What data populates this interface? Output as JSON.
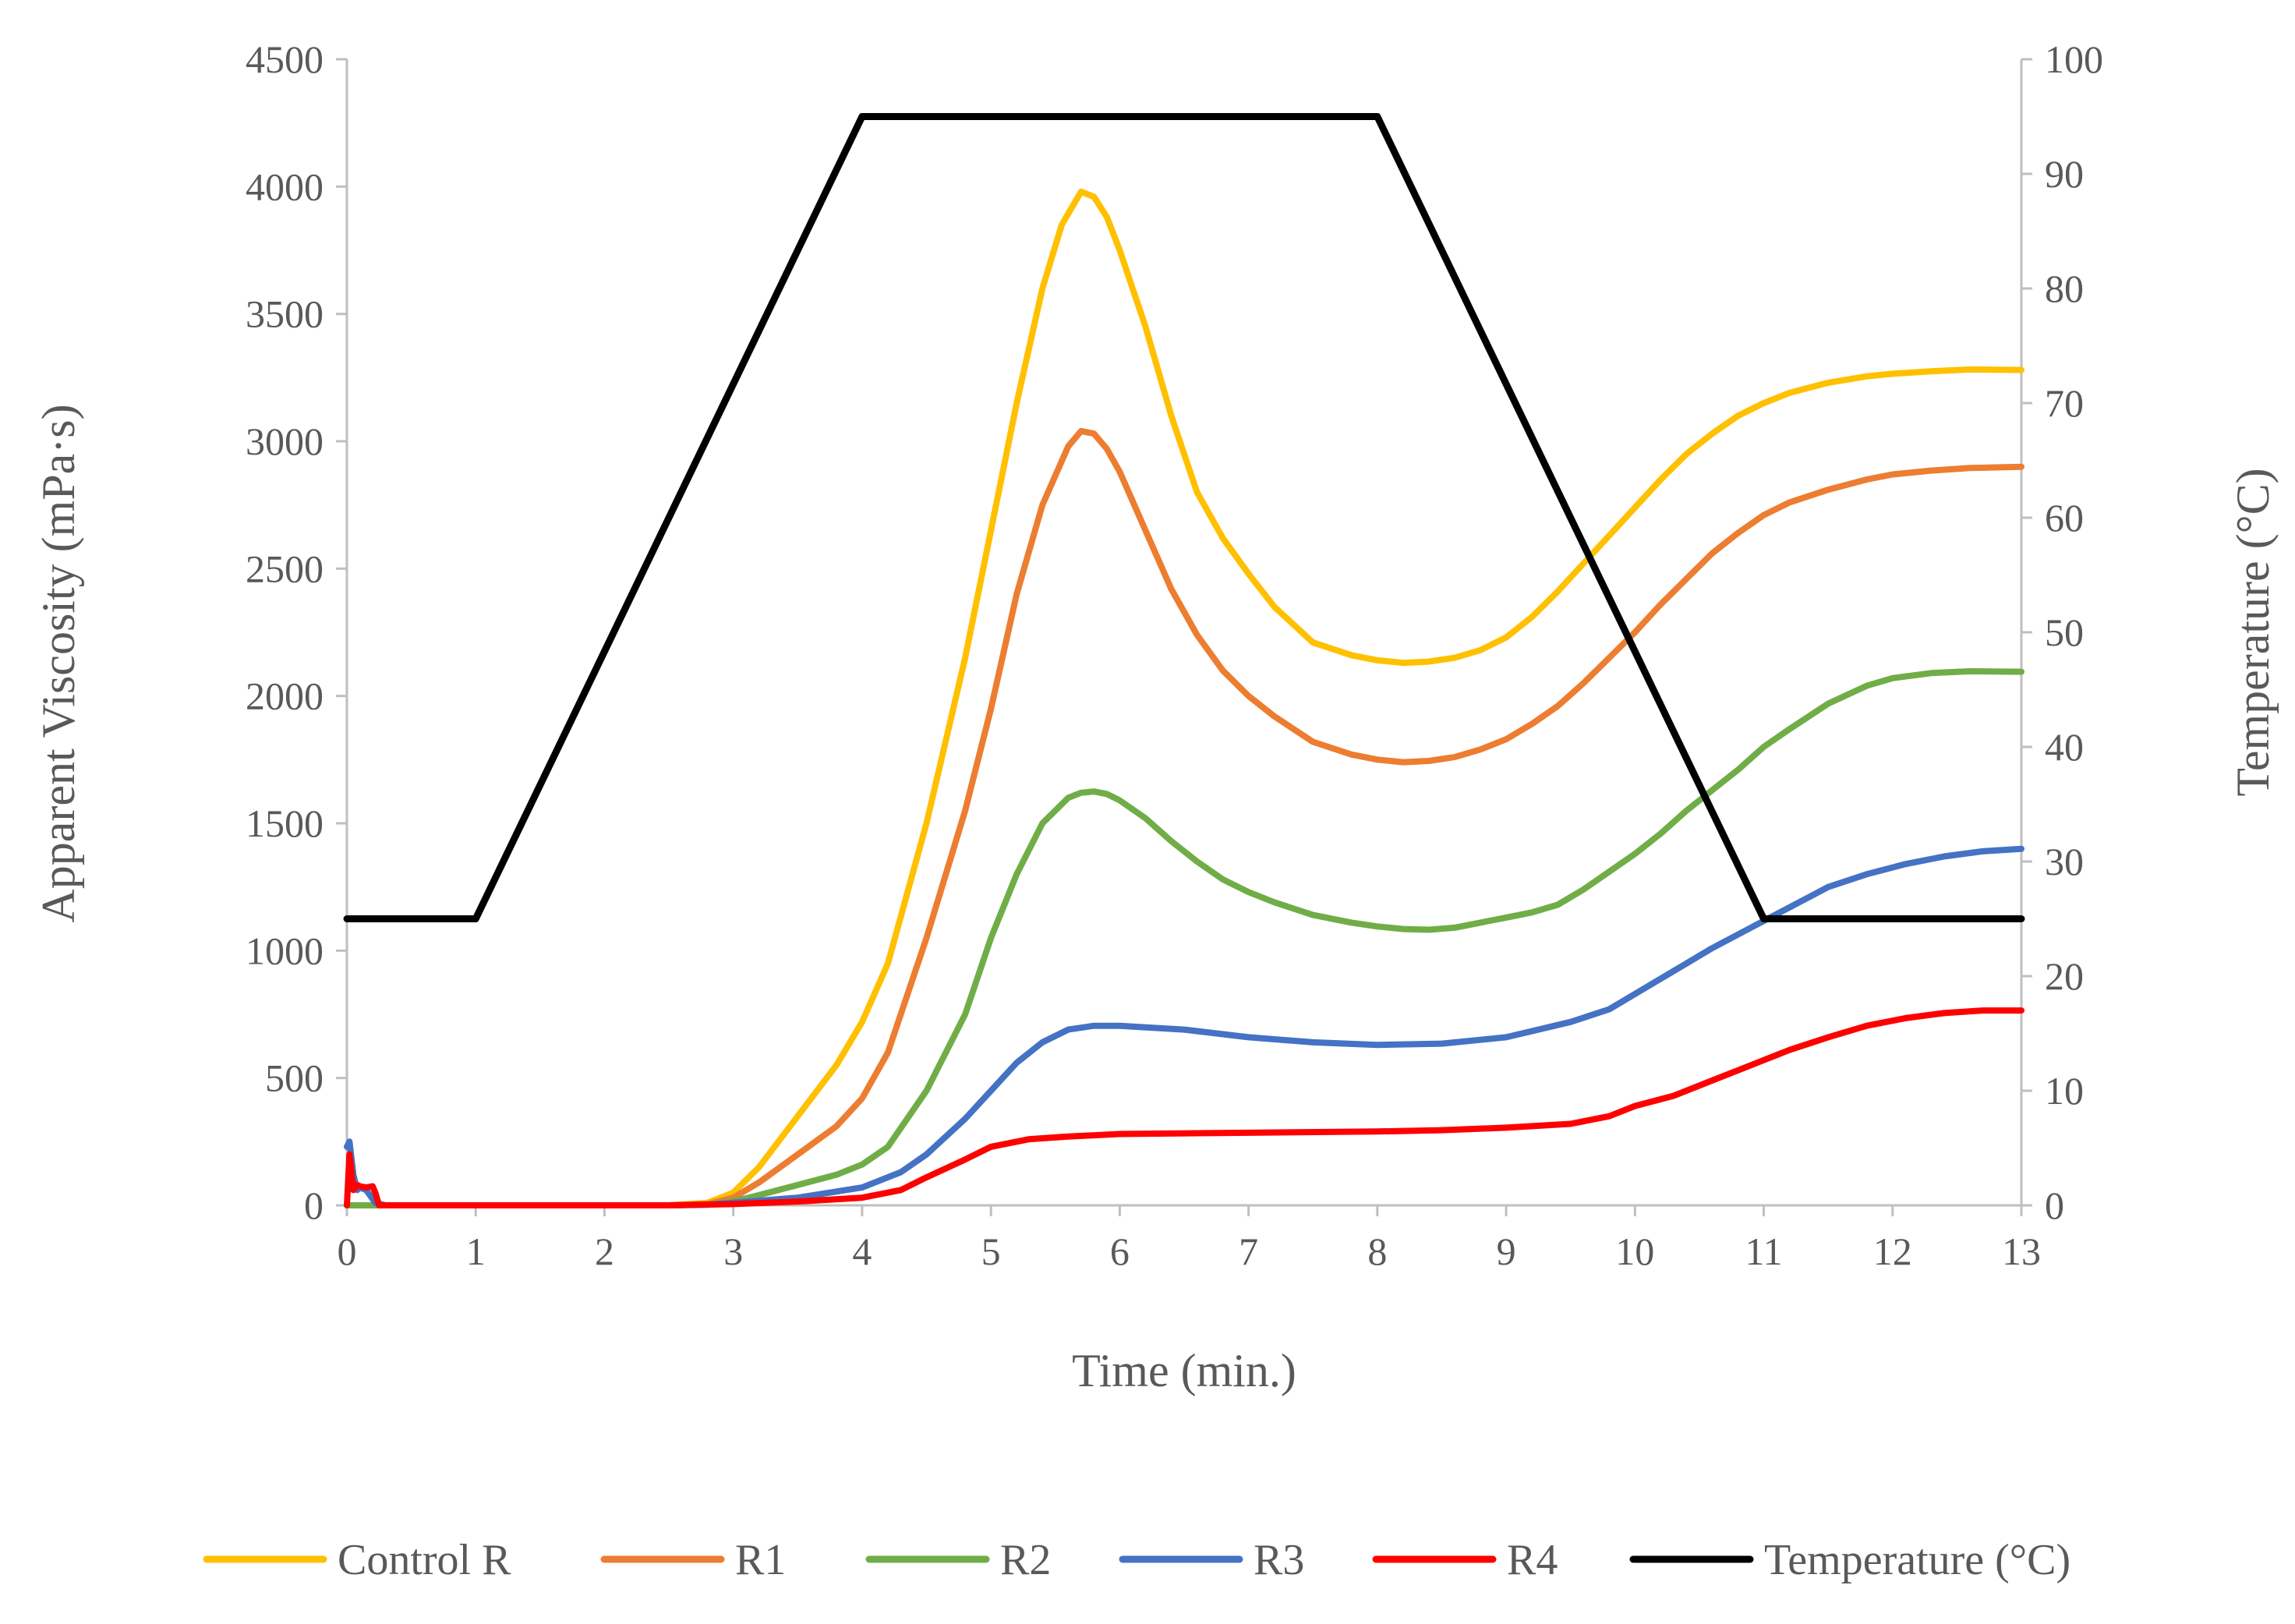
{
  "chart_data": {
    "type": "line",
    "title": "",
    "xlabel": "Time (min.)",
    "ylabel": "Apparent Viscosity (mPa·s)",
    "y2label": "Temperature (°C)",
    "xlim": [
      0,
      13
    ],
    "ylim": [
      0,
      4500
    ],
    "y2lim": [
      0,
      100
    ],
    "grid": false,
    "legend_position": "bottom",
    "x_ticks": [
      "0",
      "1",
      "2",
      "3",
      "4",
      "5",
      "6",
      "7",
      "8",
      "9",
      "10",
      "11",
      "12",
      "13"
    ],
    "y_ticks": [
      "0",
      "500",
      "1000",
      "1500",
      "2000",
      "2500",
      "3000",
      "3500",
      "4000",
      "4500"
    ],
    "y2_ticks": [
      "0",
      "10",
      "20",
      "30",
      "40",
      "50",
      "60",
      "70",
      "80",
      "90",
      "100"
    ],
    "series": [
      {
        "name": "Control R",
        "axis": "left",
        "color": "#FFC000",
        "x": [
          0,
          0.3,
          1,
          2,
          2.5,
          2.8,
          3,
          3.2,
          3.5,
          3.8,
          4,
          4.2,
          4.5,
          4.8,
          5,
          5.2,
          5.4,
          5.55,
          5.7,
          5.8,
          5.9,
          6,
          6.2,
          6.4,
          6.6,
          6.8,
          7,
          7.2,
          7.5,
          7.8,
          8,
          8.2,
          8.4,
          8.6,
          8.8,
          9,
          9.2,
          9.4,
          9.6,
          9.8,
          10,
          10.2,
          10.4,
          10.6,
          10.8,
          11,
          11.2,
          11.5,
          11.8,
          12,
          12.3,
          12.6,
          13
        ],
        "values": [
          0,
          0,
          0,
          0,
          0,
          10,
          50,
          150,
          350,
          550,
          720,
          950,
          1500,
          2150,
          2650,
          3150,
          3600,
          3850,
          3980,
          3960,
          3880,
          3750,
          3450,
          3100,
          2800,
          2620,
          2480,
          2350,
          2210,
          2160,
          2140,
          2130,
          2135,
          2150,
          2180,
          2230,
          2310,
          2410,
          2520,
          2630,
          2740,
          2850,
          2950,
          3030,
          3100,
          3150,
          3190,
          3230,
          3255,
          3265,
          3275,
          3282,
          3280
        ]
      },
      {
        "name": "R1",
        "axis": "left",
        "color": "#ED7D31",
        "x": [
          0,
          0.3,
          1,
          2,
          2.5,
          2.8,
          3,
          3.2,
          3.5,
          3.8,
          4,
          4.2,
          4.5,
          4.8,
          5,
          5.2,
          5.4,
          5.6,
          5.7,
          5.8,
          5.9,
          6,
          6.2,
          6.4,
          6.6,
          6.8,
          7,
          7.2,
          7.5,
          7.8,
          8,
          8.2,
          8.4,
          8.6,
          8.8,
          9,
          9.2,
          9.4,
          9.6,
          9.8,
          10,
          10.2,
          10.4,
          10.6,
          10.8,
          11,
          11.2,
          11.5,
          11.8,
          12,
          12.3,
          12.6,
          13
        ],
        "values": [
          0,
          0,
          0,
          0,
          0,
          5,
          30,
          90,
          200,
          310,
          420,
          600,
          1050,
          1550,
          1950,
          2400,
          2750,
          2980,
          3040,
          3030,
          2970,
          2880,
          2650,
          2420,
          2240,
          2100,
          2000,
          1920,
          1820,
          1770,
          1750,
          1740,
          1745,
          1760,
          1790,
          1830,
          1890,
          1960,
          2050,
          2150,
          2250,
          2360,
          2460,
          2560,
          2640,
          2710,
          2760,
          2810,
          2850,
          2870,
          2885,
          2895,
          2900
        ]
      },
      {
        "name": "R2",
        "axis": "left",
        "color": "#70AD47",
        "x": [
          0,
          0.3,
          1,
          2,
          2.5,
          2.8,
          3,
          3.2,
          3.5,
          3.8,
          4,
          4.2,
          4.5,
          4.8,
          5,
          5.2,
          5.4,
          5.6,
          5.7,
          5.8,
          5.9,
          6,
          6.2,
          6.4,
          6.6,
          6.8,
          7,
          7.2,
          7.5,
          7.8,
          8,
          8.2,
          8.4,
          8.6,
          8.8,
          9,
          9.2,
          9.4,
          9.6,
          9.8,
          10,
          10.2,
          10.4,
          10.6,
          10.8,
          11,
          11.2,
          11.5,
          11.8,
          12,
          12.3,
          12.6,
          13
        ],
        "values": [
          0,
          0,
          0,
          0,
          0,
          3,
          15,
          40,
          80,
          120,
          160,
          230,
          450,
          750,
          1050,
          1300,
          1500,
          1600,
          1620,
          1625,
          1615,
          1590,
          1520,
          1430,
          1350,
          1280,
          1230,
          1190,
          1140,
          1110,
          1095,
          1085,
          1082,
          1090,
          1110,
          1130,
          1150,
          1180,
          1240,
          1310,
          1380,
          1460,
          1550,
          1630,
          1710,
          1800,
          1870,
          1970,
          2040,
          2070,
          2090,
          2097,
          2095
        ]
      },
      {
        "name": "R3",
        "axis": "left",
        "color": "#4472C4",
        "x": [
          0,
          0.02,
          0.05,
          0.08,
          0.1,
          0.15,
          0.22,
          0.3,
          1,
          2,
          2.5,
          2.8,
          3,
          3.5,
          4,
          4.3,
          4.5,
          4.8,
          5,
          5.2,
          5.4,
          5.6,
          5.8,
          6,
          6.5,
          7,
          7.5,
          8,
          8.5,
          9,
          9.5,
          9.8,
          10,
          10.3,
          10.6,
          10.9,
          11.2,
          11.5,
          11.8,
          12.1,
          12.4,
          12.7,
          13
        ],
        "values": [
          230,
          250,
          120,
          60,
          70,
          60,
          10,
          0,
          0,
          0,
          0,
          2,
          10,
          30,
          70,
          130,
          200,
          340,
          450,
          560,
          640,
          690,
          705,
          705,
          690,
          660,
          640,
          630,
          635,
          660,
          720,
          770,
          830,
          920,
          1010,
          1090,
          1170,
          1250,
          1300,
          1340,
          1370,
          1390,
          1400
        ]
      },
      {
        "name": "R4",
        "axis": "left",
        "color": "#FF0000",
        "x": [
          0,
          0.02,
          0.05,
          0.08,
          0.1,
          0.15,
          0.2,
          0.22,
          0.25,
          0.3,
          1,
          2,
          2.5,
          3,
          3.5,
          4,
          4.3,
          4.5,
          4.8,
          5,
          5.3,
          5.6,
          6,
          7,
          8,
          8.5,
          9,
          9.5,
          9.8,
          10,
          10.3,
          10.6,
          10.9,
          11.2,
          11.5,
          11.8,
          12.1,
          12.4,
          12.7,
          13
        ],
        "values": [
          0,
          200,
          60,
          80,
          75,
          70,
          75,
          50,
          0,
          0,
          0,
          0,
          0,
          5,
          15,
          30,
          60,
          110,
          180,
          230,
          260,
          270,
          280,
          285,
          290,
          295,
          305,
          320,
          350,
          390,
          430,
          490,
          550,
          610,
          660,
          705,
          735,
          755,
          765,
          765
        ]
      },
      {
        "name": "Temperature (°C)",
        "axis": "right",
        "color": "#000000",
        "x": [
          0,
          1,
          4,
          8,
          11,
          13
        ],
        "values": [
          25,
          25,
          95,
          95,
          25,
          25
        ]
      }
    ]
  }
}
